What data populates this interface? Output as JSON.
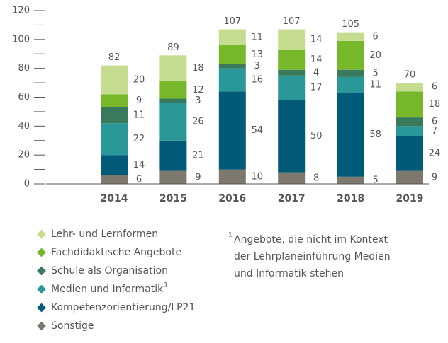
{
  "chart_data": {
    "type": "stacked_bar",
    "categories": [
      "2014",
      "2015",
      "2016",
      "2017",
      "2018",
      "2019"
    ],
    "totals": [
      82,
      89,
      107,
      107,
      105,
      70
    ],
    "series": [
      {
        "name": "Sonstige",
        "color": "#7d796e",
        "values": [
          6,
          9,
          10,
          8,
          5,
          9
        ]
      },
      {
        "name": "Kompetenzorientierung/LP21",
        "color": "#005a78",
        "values": [
          14,
          21,
          54,
          50,
          58,
          24
        ]
      },
      {
        "name": "Medien und Informatik",
        "color": "#2a9898",
        "values": [
          22,
          26,
          16,
          17,
          11,
          7
        ],
        "footnote_marker": "1"
      },
      {
        "name": "Schule als Organisation",
        "color": "#3a7a5c",
        "values": [
          11,
          3,
          3,
          4,
          5,
          6
        ]
      },
      {
        "name": "Fachdidaktische Angebote",
        "color": "#76b82a",
        "values": [
          9,
          12,
          13,
          14,
          20,
          18
        ]
      },
      {
        "name": "Lehr- und Lernformen",
        "color": "#c6dc90",
        "values": [
          20,
          18,
          11,
          14,
          6,
          6
        ]
      }
    ],
    "ylim": [
      0,
      120
    ],
    "yticks": [
      0,
      20,
      40,
      60,
      80,
      100,
      120
    ],
    "minor_yticks": [
      10,
      30,
      50,
      70,
      90,
      110
    ],
    "footnote_marker": "1",
    "footnote": [
      "Angebote, die nicht im Kontext",
      "der Lehrplaneinführung Medien",
      "und Informatik stehen"
    ]
  }
}
